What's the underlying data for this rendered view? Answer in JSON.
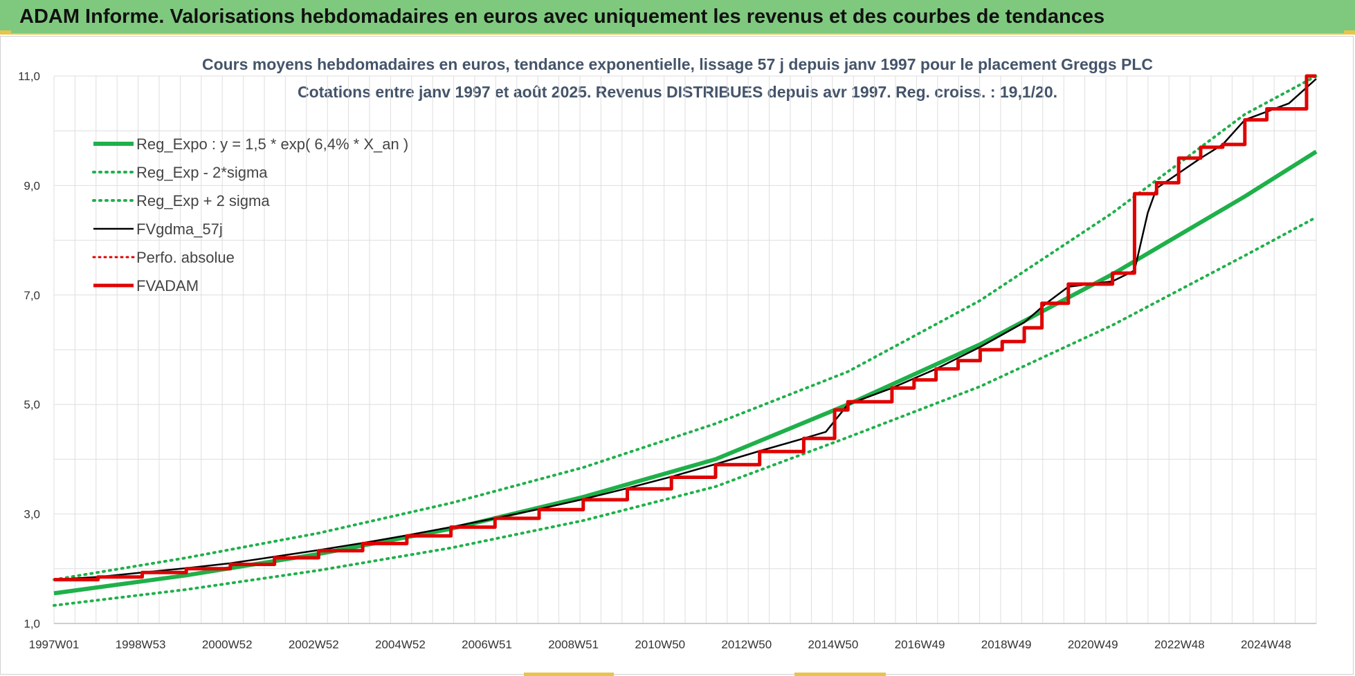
{
  "header": {
    "title": "ADAM Informe. Valorisations hebdomadaires en euros avec uniquement les revenus et des courbes de tendances"
  },
  "colors": {
    "header_bg": "#7fc97f",
    "accent_yellow": "#e9c44a",
    "reg_expo": "#1fb04a",
    "sigma_band": "#1fb04a",
    "fvgdma": "#000000",
    "perfo": "#e00000",
    "fvadam": "#e00000"
  },
  "chart_data": {
    "type": "line",
    "title": "Cours moyens hebdomadaires en euros, tendance exponentielle, lissage 57 j depuis janv 1997 pour le placement Greggs PLC",
    "subtitle": "Cotations entre janv 1997 et août 2025. Revenus DISTRIBUES depuis avr 1997. Reg. croiss. : 19,1/20.",
    "xlabel": "",
    "ylabel": "",
    "x_range": [
      1997.0,
      2025.62
    ],
    "x_tick_labels": [
      "1997W01",
      "1998W53",
      "2000W52",
      "2002W52",
      "2004W52",
      "2006W51",
      "2008W51",
      "2010W50",
      "2012W50",
      "2014W50",
      "2016W49",
      "2018W49",
      "2020W49",
      "2022W48",
      "2024W48"
    ],
    "ylim": [
      1.0,
      11.0
    ],
    "y_tick_labels": [
      "1,0",
      "3,0",
      "5,0",
      "7,0",
      "9,0",
      "11,0"
    ],
    "grid": true,
    "legend_position": "top-left",
    "series": [
      {
        "name": "Reg_Expo : y = 1,5 * exp( 6,4% *  X_an )",
        "style": "solid-thick",
        "x": [
          1997.0,
          2000.0,
          2003.0,
          2006.0,
          2009.0,
          2012.0,
          2015.0,
          2018.0,
          2021.0,
          2024.0,
          2025.62
        ],
        "y": [
          1.55,
          1.88,
          2.27,
          2.73,
          3.31,
          4.0,
          5.0,
          6.1,
          7.38,
          8.8,
          9.62
        ]
      },
      {
        "name": "Reg_Exp - 2*sigma",
        "style": "dotted",
        "x": [
          1997.0,
          2000.0,
          2003.0,
          2006.0,
          2009.0,
          2012.0,
          2015.0,
          2018.0,
          2021.0,
          2024.0,
          2025.62
        ],
        "y": [
          1.33,
          1.62,
          1.97,
          2.38,
          2.88,
          3.5,
          4.4,
          5.33,
          6.45,
          7.72,
          8.42
        ]
      },
      {
        "name": "Reg_Exp + 2 sigma",
        "style": "dotted",
        "x": [
          1997.0,
          2000.0,
          2003.0,
          2006.0,
          2009.0,
          2012.0,
          2015.0,
          2018.0,
          2021.0,
          2024.0,
          2025.62
        ],
        "y": [
          1.8,
          2.2,
          2.65,
          3.2,
          3.85,
          4.65,
          5.6,
          6.9,
          8.5,
          10.3,
          11.0
        ]
      },
      {
        "name": "FVgdma_57j",
        "style": "solid-thin",
        "x": [
          1997.0,
          1998.0,
          1999.0,
          2000.0,
          2001.0,
          2002.0,
          2003.0,
          2004.0,
          2005.0,
          2006.0,
          2007.0,
          2008.0,
          2009.0,
          2010.0,
          2011.0,
          2012.0,
          2013.0,
          2014.0,
          2014.5,
          2015.0,
          2016.0,
          2017.0,
          2018.0,
          2019.0,
          2019.5,
          2020.0,
          2021.0,
          2021.5,
          2021.8,
          2022.0,
          2023.0,
          2023.5,
          2024.0,
          2025.0,
          2025.62
        ],
        "y": [
          1.8,
          1.85,
          1.93,
          2.01,
          2.1,
          2.22,
          2.34,
          2.47,
          2.61,
          2.76,
          2.92,
          3.09,
          3.27,
          3.47,
          3.68,
          3.91,
          4.15,
          4.38,
          4.5,
          5.0,
          5.3,
          5.65,
          6.05,
          6.5,
          6.85,
          7.15,
          7.25,
          7.45,
          8.5,
          8.95,
          9.5,
          9.75,
          10.2,
          10.5,
          10.95
        ]
      },
      {
        "name": "Perfo. absolue",
        "style": "dotted-red",
        "x": [],
        "y": []
      },
      {
        "name": "FVADAM",
        "style": "step-thick",
        "x": [
          1997.0,
          1998.0,
          1999.0,
          2000.0,
          2001.0,
          2002.0,
          2003.0,
          2004.0,
          2005.0,
          2006.0,
          2007.0,
          2008.0,
          2009.0,
          2010.0,
          2011.0,
          2012.0,
          2013.0,
          2014.0,
          2014.7,
          2015.0,
          2016.0,
          2016.5,
          2017.0,
          2017.5,
          2018.0,
          2018.5,
          2019.0,
          2019.4,
          2020.0,
          2021.0,
          2021.5,
          2022.0,
          2022.5,
          2023.0,
          2023.5,
          2024.0,
          2024.5,
          2025.4,
          2025.62
        ],
        "y": [
          1.8,
          1.85,
          1.93,
          2.0,
          2.08,
          2.2,
          2.33,
          2.46,
          2.6,
          2.76,
          2.92,
          3.08,
          3.26,
          3.46,
          3.67,
          3.9,
          4.14,
          4.38,
          4.9,
          5.05,
          5.3,
          5.45,
          5.65,
          5.8,
          6.0,
          6.15,
          6.4,
          6.85,
          7.2,
          7.4,
          8.85,
          9.05,
          9.5,
          9.7,
          9.75,
          10.2,
          10.4,
          11.0,
          11.0
        ]
      }
    ]
  }
}
